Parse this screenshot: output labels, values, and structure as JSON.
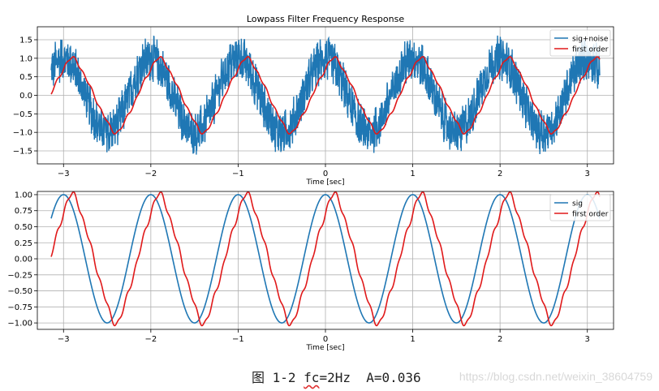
{
  "chart_data": [
    {
      "type": "line",
      "title": "Lowpass Filter Frequency Response",
      "xlabel": "Time [sec]",
      "ylabel": "",
      "xlim": [
        -3.3,
        3.3
      ],
      "ylim": [
        -1.85,
        1.85
      ],
      "xticks": [
        -3,
        -2,
        -1,
        0,
        1,
        2,
        3
      ],
      "xtick_labels": [
        "−3",
        "−2",
        "−1",
        "0",
        "1",
        "2",
        "3"
      ],
      "yticks": [
        -1.5,
        -1.0,
        -0.5,
        0.0,
        0.5,
        1.0,
        1.5
      ],
      "ytick_labels": [
        "−1.5",
        "−1.0",
        "−0.5",
        "0.0",
        "0.5",
        "1.0",
        "1.5"
      ],
      "grid": true,
      "legend": "top-right",
      "series": [
        {
          "name": "sig+noise",
          "color": "#1f77b4",
          "description": "cos(2π·t) with high-frequency noise, amplitude ≈ ±0.6"
        },
        {
          "name": "first order",
          "color": "#e0191a",
          "description": "first-order lowpass output, peaks ≈ 0.87, troughs ≈ -0.93"
        }
      ]
    },
    {
      "type": "line",
      "title": "",
      "xlabel": "Time [sec]",
      "ylabel": "",
      "xlim": [
        -3.3,
        3.3
      ],
      "ylim": [
        -1.1,
        1.05
      ],
      "xticks": [
        -3,
        -2,
        -1,
        0,
        1,
        2,
        3
      ],
      "xtick_labels": [
        "−3",
        "−2",
        "−1",
        "0",
        "1",
        "2",
        "3"
      ],
      "yticks": [
        -1.0,
        -0.75,
        -0.5,
        -0.25,
        0.0,
        0.25,
        0.5,
        0.75,
        1.0
      ],
      "ytick_labels": [
        "−1.00",
        "−0.75",
        "−0.50",
        "−0.25",
        "0.00",
        "0.25",
        "0.50",
        "0.75",
        "1.00"
      ],
      "grid": true,
      "legend": "top-right",
      "series": [
        {
          "name": "sig",
          "color": "#1f77b4",
          "description": "cos(2π·t)"
        },
        {
          "name": "first order",
          "color": "#e0191a",
          "description": "first-order lowpass output"
        }
      ]
    }
  ],
  "caption": {
    "prefix": "图 1-2 ",
    "fc_label": "fc",
    "suffix": "=2Hz  A=0.036"
  },
  "watermark": "https://blog.csdn.net/weixin_38604759"
}
